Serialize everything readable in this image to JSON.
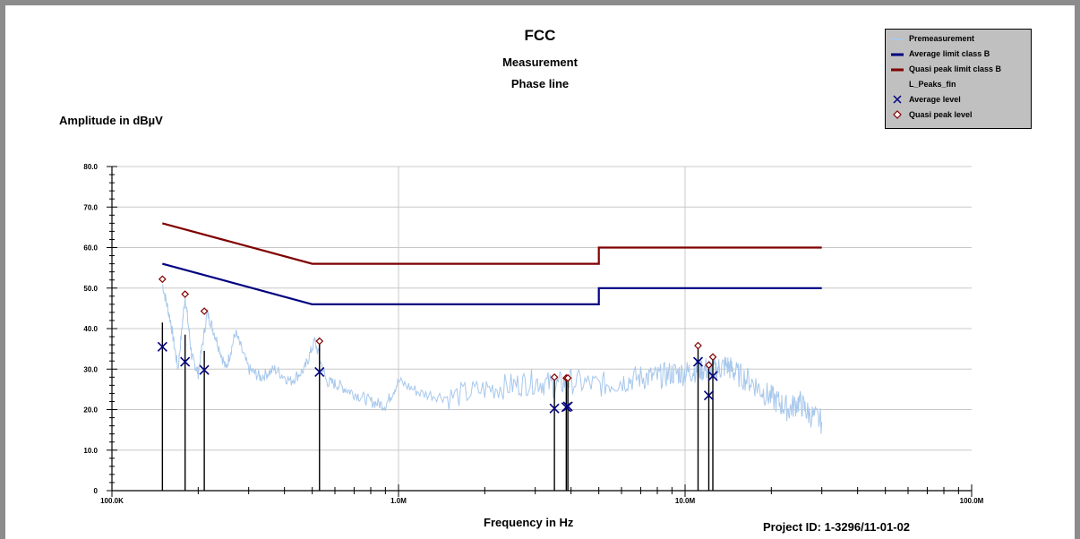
{
  "titles": {
    "main": "FCC",
    "sub1": "Measurement",
    "sub2": "Phase line"
  },
  "project_id": "Project ID: 1-3296/11-01-02",
  "legend": [
    {
      "label": "Premeasurement",
      "symbol": "line",
      "color": "#a8c8ec"
    },
    {
      "label": "Average limit class B",
      "symbol": "line",
      "color": "#000080"
    },
    {
      "label": "Quasi peak limit class B",
      "symbol": "line",
      "color": "#800000"
    },
    {
      "label": "L_Peaks_fin",
      "symbol": "none",
      "color": "#000000"
    },
    {
      "label": "Average level",
      "symbol": "x",
      "color": "#000080"
    },
    {
      "label": "Quasi peak level",
      "symbol": "diamond",
      "color": "#800000"
    }
  ],
  "chart_data": {
    "type": "line",
    "title": "FCC",
    "xlabel": "Frequency in Hz",
    "ylabel": "Amplitude in dBµV",
    "xscale": "log",
    "xlim": [
      100000,
      100000000
    ],
    "ylim": [
      0,
      80
    ],
    "x_tick_labels": [
      "100.0K",
      "1.0M",
      "10.0M",
      "100.0M"
    ],
    "y_tick_labels": [
      "0",
      "10.0",
      "20.0",
      "30.0",
      "40.0",
      "50.0",
      "60.0",
      "70.0",
      "80.0"
    ],
    "grid": true,
    "legend_position": "top-right",
    "series": [
      {
        "name": "Average limit class B",
        "color": "#000080",
        "x": [
          150000,
          500000,
          5000000,
          5000000,
          30000000
        ],
        "y": [
          56,
          46,
          46,
          50,
          50
        ]
      },
      {
        "name": "Quasi peak limit class B",
        "color": "#800000",
        "x": [
          150000,
          500000,
          5000000,
          5000000,
          30000000
        ],
        "y": [
          66,
          56,
          56,
          60,
          60
        ]
      },
      {
        "name": "Premeasurement",
        "color": "#a8c8ec",
        "x": [
          150000,
          160000,
          170000,
          180000,
          190000,
          200000,
          215000,
          230000,
          250000,
          270000,
          300000,
          330000,
          370000,
          420000,
          470000,
          510000,
          560000,
          620000,
          700000,
          800000,
          900000,
          1000000,
          1200000,
          1500000,
          2000000,
          2500000,
          3000000,
          3500000,
          4000000,
          5000000,
          6000000,
          7000000,
          8000000,
          9000000,
          10000000,
          11000000,
          12000000,
          13000000,
          14000000,
          15000000,
          17000000,
          19000000,
          21000000,
          23000000,
          25000000,
          27000000,
          30000000
        ],
        "y": [
          51,
          42,
          30,
          48,
          33,
          29,
          44,
          38,
          30,
          39,
          30,
          28,
          30,
          27,
          30,
          37,
          27,
          26,
          24,
          22,
          21,
          27,
          24,
          23,
          25,
          26,
          27,
          26,
          27,
          26,
          27,
          28,
          28,
          29,
          29,
          30,
          30,
          30,
          31,
          29,
          27,
          24,
          22,
          20,
          22,
          19,
          17
        ]
      }
    ],
    "peaks_fin": [
      {
        "x": 150000,
        "y": 41.5
      },
      {
        "x": 180000,
        "y": 38.5
      },
      {
        "x": 210000,
        "y": 34.5
      },
      {
        "x": 530000,
        "y": 36.5
      },
      {
        "x": 3500000,
        "y": 27.5
      },
      {
        "x": 3850000,
        "y": 27.5
      },
      {
        "x": 3900000,
        "y": 27.5
      },
      {
        "x": 11100000,
        "y": 35.5
      },
      {
        "x": 12100000,
        "y": 30.5
      },
      {
        "x": 12500000,
        "y": 32.5
      }
    ],
    "average_level": [
      {
        "x": 150000,
        "y": 35.5
      },
      {
        "x": 180000,
        "y": 31.8
      },
      {
        "x": 210000,
        "y": 29.8
      },
      {
        "x": 530000,
        "y": 29.3
      },
      {
        "x": 3500000,
        "y": 20.3
      },
      {
        "x": 3850000,
        "y": 20.6
      },
      {
        "x": 3900000,
        "y": 20.8
      },
      {
        "x": 11100000,
        "y": 31.8
      },
      {
        "x": 12100000,
        "y": 23.5
      },
      {
        "x": 12500000,
        "y": 28.3
      }
    ],
    "quasi_peak_level": [
      {
        "x": 150000,
        "y": 52.2
      },
      {
        "x": 180000,
        "y": 48.5
      },
      {
        "x": 210000,
        "y": 44.3
      },
      {
        "x": 530000,
        "y": 36.9
      },
      {
        "x": 3500000,
        "y": 28.0
      },
      {
        "x": 3850000,
        "y": 27.8
      },
      {
        "x": 3900000,
        "y": 27.8
      },
      {
        "x": 11100000,
        "y": 35.8
      },
      {
        "x": 12100000,
        "y": 31.0
      },
      {
        "x": 12500000,
        "y": 33.0
      }
    ]
  }
}
